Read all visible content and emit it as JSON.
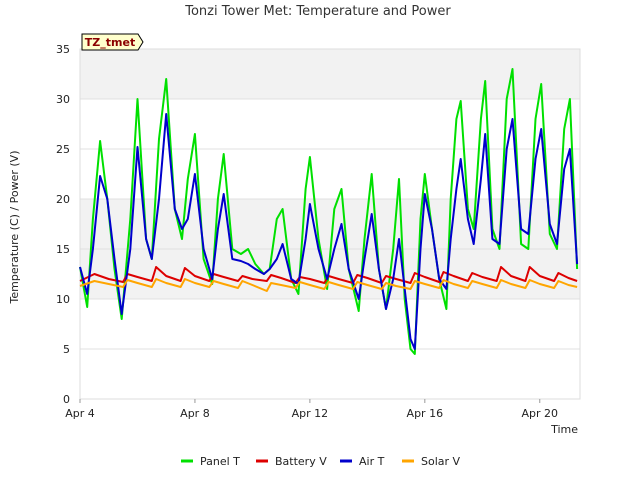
{
  "chart_data": {
    "type": "line",
    "title": "Tonzi Tower Met: Temperature and Power",
    "xlabel": "Time",
    "ylabel": "Temperature (C) / Power (V)",
    "badge": "TZ_tmet",
    "xlim": [
      0,
      17.4
    ],
    "ylim": [
      0,
      35
    ],
    "yticks": [
      0,
      5,
      10,
      15,
      20,
      25,
      30,
      35
    ],
    "xticks": [
      {
        "value": 0,
        "label": "Apr 4"
      },
      {
        "value": 4,
        "label": "Apr 8"
      },
      {
        "value": 8,
        "label": "Apr 12"
      },
      {
        "value": 12,
        "label": "Apr 16"
      },
      {
        "value": 16,
        "label": "Apr 20"
      }
    ],
    "x_units": "days since Apr 4",
    "series": [
      {
        "name": "Panel T",
        "color": "#00e000",
        "points": [
          [
            0.0,
            13.2
          ],
          [
            0.25,
            9.2
          ],
          [
            0.45,
            18
          ],
          [
            0.7,
            25.8
          ],
          [
            0.95,
            20
          ],
          [
            1.2,
            13
          ],
          [
            1.45,
            8
          ],
          [
            1.75,
            18
          ],
          [
            2.0,
            30
          ],
          [
            2.3,
            16
          ],
          [
            2.5,
            14
          ],
          [
            2.75,
            26
          ],
          [
            3.0,
            32
          ],
          [
            3.3,
            19
          ],
          [
            3.55,
            16
          ],
          [
            3.75,
            22
          ],
          [
            4.0,
            26.5
          ],
          [
            4.3,
            14
          ],
          [
            4.6,
            11.5
          ],
          [
            4.8,
            20
          ],
          [
            5.0,
            24.5
          ],
          [
            5.3,
            15
          ],
          [
            5.6,
            14.5
          ],
          [
            5.85,
            15
          ],
          [
            6.1,
            13.5
          ],
          [
            6.4,
            12.5
          ],
          [
            6.6,
            13
          ],
          [
            6.85,
            18
          ],
          [
            7.05,
            19
          ],
          [
            7.35,
            12
          ],
          [
            7.6,
            10.5
          ],
          [
            7.85,
            21
          ],
          [
            8.0,
            24.2
          ],
          [
            8.3,
            16
          ],
          [
            8.6,
            11
          ],
          [
            8.85,
            19
          ],
          [
            9.1,
            21
          ],
          [
            9.35,
            13
          ],
          [
            9.7,
            8.8
          ],
          [
            9.9,
            16
          ],
          [
            10.15,
            22.5
          ],
          [
            10.4,
            13
          ],
          [
            10.65,
            9
          ],
          [
            10.9,
            15
          ],
          [
            11.1,
            22
          ],
          [
            11.3,
            10
          ],
          [
            11.5,
            5
          ],
          [
            11.65,
            4.5
          ],
          [
            11.85,
            18
          ],
          [
            12.0,
            22.5
          ],
          [
            12.25,
            17
          ],
          [
            12.5,
            12
          ],
          [
            12.75,
            9
          ],
          [
            12.9,
            20
          ],
          [
            13.1,
            28
          ],
          [
            13.25,
            29.8
          ],
          [
            13.5,
            19
          ],
          [
            13.7,
            17
          ],
          [
            13.95,
            28
          ],
          [
            14.1,
            31.8
          ],
          [
            14.35,
            17
          ],
          [
            14.6,
            15
          ],
          [
            14.85,
            30
          ],
          [
            15.05,
            33
          ],
          [
            15.35,
            15.5
          ],
          [
            15.6,
            15
          ],
          [
            15.85,
            28
          ],
          [
            16.05,
            31.5
          ],
          [
            16.35,
            16.5
          ],
          [
            16.6,
            15
          ],
          [
            16.85,
            27
          ],
          [
            17.05,
            30
          ],
          [
            17.3,
            13
          ]
        ]
      },
      {
        "name": "Battery V",
        "color": "#dd0000",
        "points": [
          [
            0.0,
            11.8
          ],
          [
            0.5,
            12.5
          ],
          [
            1.0,
            12
          ],
          [
            1.5,
            11.7
          ],
          [
            1.65,
            12.5
          ],
          [
            2.0,
            12.2
          ],
          [
            2.5,
            11.8
          ],
          [
            2.65,
            13.2
          ],
          [
            3.0,
            12.3
          ],
          [
            3.5,
            11.8
          ],
          [
            3.65,
            13.1
          ],
          [
            4.0,
            12.3
          ],
          [
            4.5,
            11.8
          ],
          [
            4.65,
            12.5
          ],
          [
            5.0,
            12.2
          ],
          [
            5.5,
            11.8
          ],
          [
            5.65,
            12.3
          ],
          [
            6.0,
            12
          ],
          [
            6.5,
            11.8
          ],
          [
            6.65,
            12.4
          ],
          [
            7.0,
            12.1
          ],
          [
            7.5,
            11.6
          ],
          [
            7.65,
            12.2
          ],
          [
            8.0,
            12
          ],
          [
            8.5,
            11.6
          ],
          [
            8.65,
            12.3
          ],
          [
            9.0,
            12
          ],
          [
            9.5,
            11.6
          ],
          [
            9.65,
            12.4
          ],
          [
            10.0,
            12.1
          ],
          [
            10.5,
            11.6
          ],
          [
            10.65,
            12.3
          ],
          [
            11.0,
            12
          ],
          [
            11.5,
            11.6
          ],
          [
            11.65,
            12.6
          ],
          [
            12.0,
            12.2
          ],
          [
            12.5,
            11.7
          ],
          [
            12.65,
            12.7
          ],
          [
            13.0,
            12.3
          ],
          [
            13.5,
            11.8
          ],
          [
            13.65,
            12.6
          ],
          [
            14.0,
            12.2
          ],
          [
            14.5,
            11.8
          ],
          [
            14.65,
            13.2
          ],
          [
            15.0,
            12.3
          ],
          [
            15.5,
            11.8
          ],
          [
            15.65,
            13.2
          ],
          [
            16.0,
            12.3
          ],
          [
            16.5,
            11.8
          ],
          [
            16.65,
            12.6
          ],
          [
            17.0,
            12.1
          ],
          [
            17.3,
            11.8
          ]
        ]
      },
      {
        "name": "Air T",
        "color": "#0000cc",
        "points": [
          [
            0.0,
            13.2
          ],
          [
            0.25,
            10.5
          ],
          [
            0.45,
            15
          ],
          [
            0.7,
            22.3
          ],
          [
            0.95,
            20
          ],
          [
            1.2,
            14
          ],
          [
            1.45,
            8.5
          ],
          [
            1.75,
            15
          ],
          [
            2.0,
            25.2
          ],
          [
            2.3,
            16
          ],
          [
            2.5,
            14
          ],
          [
            2.75,
            20
          ],
          [
            3.0,
            28.5
          ],
          [
            3.3,
            19
          ],
          [
            3.55,
            17
          ],
          [
            3.75,
            18
          ],
          [
            4.0,
            22.5
          ],
          [
            4.3,
            15
          ],
          [
            4.6,
            12
          ],
          [
            4.8,
            17
          ],
          [
            5.0,
            20.5
          ],
          [
            5.3,
            14
          ],
          [
            5.6,
            13.8
          ],
          [
            5.85,
            13.5
          ],
          [
            6.1,
            13
          ],
          [
            6.4,
            12.5
          ],
          [
            6.6,
            13
          ],
          [
            6.85,
            14
          ],
          [
            7.05,
            15.5
          ],
          [
            7.35,
            12
          ],
          [
            7.6,
            11.5
          ],
          [
            7.85,
            16
          ],
          [
            8.0,
            19.5
          ],
          [
            8.3,
            15
          ],
          [
            8.6,
            12
          ],
          [
            8.85,
            15
          ],
          [
            9.1,
            17.5
          ],
          [
            9.35,
            13
          ],
          [
            9.7,
            10
          ],
          [
            9.9,
            14
          ],
          [
            10.15,
            18.5
          ],
          [
            10.4,
            13
          ],
          [
            10.65,
            9
          ],
          [
            10.9,
            12
          ],
          [
            11.1,
            16
          ],
          [
            11.3,
            11
          ],
          [
            11.5,
            6
          ],
          [
            11.65,
            5
          ],
          [
            11.85,
            15
          ],
          [
            12.0,
            20.5
          ],
          [
            12.25,
            17
          ],
          [
            12.5,
            12
          ],
          [
            12.75,
            11
          ],
          [
            12.9,
            16
          ],
          [
            13.1,
            21
          ],
          [
            13.25,
            24
          ],
          [
            13.5,
            18
          ],
          [
            13.7,
            15.5
          ],
          [
            13.95,
            22
          ],
          [
            14.1,
            26.5
          ],
          [
            14.35,
            16
          ],
          [
            14.6,
            15.5
          ],
          [
            14.85,
            25
          ],
          [
            15.05,
            28
          ],
          [
            15.35,
            17
          ],
          [
            15.6,
            16.5
          ],
          [
            15.85,
            24
          ],
          [
            16.05,
            27
          ],
          [
            16.35,
            17.5
          ],
          [
            16.6,
            15.5
          ],
          [
            16.85,
            23
          ],
          [
            17.05,
            25
          ],
          [
            17.3,
            13.5
          ]
        ]
      },
      {
        "name": "Solar V",
        "color": "#ffa500",
        "points": [
          [
            0.0,
            11.3
          ],
          [
            0.5,
            11.8
          ],
          [
            1.0,
            11.5
          ],
          [
            1.5,
            11.2
          ],
          [
            1.65,
            11.9
          ],
          [
            2.0,
            11.6
          ],
          [
            2.5,
            11.2
          ],
          [
            2.65,
            12
          ],
          [
            3.0,
            11.6
          ],
          [
            3.5,
            11.2
          ],
          [
            3.65,
            12
          ],
          [
            4.0,
            11.6
          ],
          [
            4.5,
            11.2
          ],
          [
            4.65,
            11.8
          ],
          [
            5.0,
            11.5
          ],
          [
            5.5,
            11.1
          ],
          [
            5.65,
            11.8
          ],
          [
            6.0,
            11.4
          ],
          [
            6.5,
            10.8
          ],
          [
            6.65,
            11.6
          ],
          [
            7.0,
            11.4
          ],
          [
            7.5,
            11.1
          ],
          [
            7.65,
            11.7
          ],
          [
            8.0,
            11.4
          ],
          [
            8.5,
            11
          ],
          [
            8.65,
            11.7
          ],
          [
            9.0,
            11.4
          ],
          [
            9.5,
            11
          ],
          [
            9.65,
            11.7
          ],
          [
            10.0,
            11.4
          ],
          [
            10.5,
            11
          ],
          [
            10.65,
            11.6
          ],
          [
            11.0,
            11.3
          ],
          [
            11.5,
            11
          ],
          [
            11.65,
            11.8
          ],
          [
            12.0,
            11.5
          ],
          [
            12.5,
            11.1
          ],
          [
            12.65,
            11.9
          ],
          [
            13.0,
            11.5
          ],
          [
            13.5,
            11.1
          ],
          [
            13.65,
            11.8
          ],
          [
            14.0,
            11.5
          ],
          [
            14.5,
            11.1
          ],
          [
            14.65,
            11.9
          ],
          [
            15.0,
            11.5
          ],
          [
            15.5,
            11.1
          ],
          [
            15.65,
            11.9
          ],
          [
            16.0,
            11.5
          ],
          [
            16.5,
            11.1
          ],
          [
            16.65,
            11.8
          ],
          [
            17.0,
            11.4
          ],
          [
            17.3,
            11.2
          ]
        ]
      }
    ]
  }
}
